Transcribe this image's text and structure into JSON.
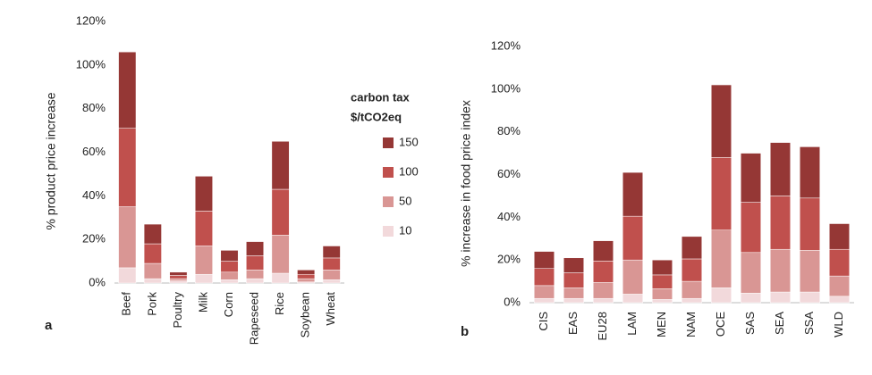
{
  "chart_data": [
    {
      "type": "bar",
      "stacked": true,
      "panel_label": "a",
      "y_label": "% product price increase",
      "categories": [
        "Beef",
        "Pork",
        "Poultry",
        "Milk",
        "Corn",
        "Rapeseed",
        "Rice",
        "Soybean",
        "Wheat"
      ],
      "legend_title": [
        "carbon tax",
        "$/tCO2eq"
      ],
      "series": [
        {
          "name": "10",
          "color": "#f2d9db",
          "values": [
            7,
            2,
            1,
            4,
            1.5,
            2,
            4.5,
            0.5,
            1.5
          ]
        },
        {
          "name": "50",
          "color": "#d99694",
          "values": [
            28,
            7,
            1,
            13,
            3.5,
            4,
            17.5,
            1.5,
            4.5
          ]
        },
        {
          "name": "100",
          "color": "#c0504d",
          "values": [
            36,
            9,
            1.5,
            16,
            5,
            6.5,
            21,
            2,
            5.5
          ]
        },
        {
          "name": "150",
          "color": "#953735",
          "values": [
            35,
            9,
            1.5,
            16,
            5,
            6.5,
            22,
            2,
            5.5
          ]
        }
      ],
      "ylim": [
        0,
        120
      ],
      "yticks": [
        {
          "value": 0,
          "label": "0%"
        },
        {
          "value": 20,
          "label": "20%"
        },
        {
          "value": 40,
          "label": "40%"
        },
        {
          "value": 60,
          "label": "60%"
        },
        {
          "value": 80,
          "label": "80%"
        },
        {
          "value": 100,
          "label": "100%"
        },
        {
          "value": 120,
          "label": "120%"
        }
      ]
    },
    {
      "type": "bar",
      "stacked": true,
      "panel_label": "b",
      "y_label": "% increase in food price index",
      "categories": [
        "CIS",
        "EAS",
        "EU28",
        "LAM",
        "MEN",
        "NAM",
        "OCE",
        "SAS",
        "SEA",
        "SSA",
        "WLD"
      ],
      "series": [
        {
          "color": "#f2d9db",
          "values": [
            2,
            2,
            2,
            4,
            1.5,
            2,
            7,
            4.5,
            5,
            5,
            3
          ]
        },
        {
          "color": "#d99694",
          "values": [
            6,
            5,
            7.5,
            16,
            5,
            8,
            27,
            19,
            20,
            19.5,
            9.5
          ]
        },
        {
          "color": "#c0504d",
          "values": [
            8,
            7,
            10,
            20.5,
            6.5,
            10.5,
            34,
            23.5,
            25,
            24.5,
            12.5
          ]
        },
        {
          "color": "#953735",
          "values": [
            8,
            7,
            9.5,
            20.5,
            7,
            10.5,
            34,
            23,
            25,
            24,
            12
          ]
        }
      ],
      "ylim": [
        0,
        120
      ],
      "yticks": [
        {
          "value": 0,
          "label": "0%"
        },
        {
          "value": 20,
          "label": "20%"
        },
        {
          "value": 40,
          "label": "40%"
        },
        {
          "value": 60,
          "label": "60%"
        },
        {
          "value": 80,
          "label": "80%"
        },
        {
          "value": 100,
          "label": "100%"
        },
        {
          "value": 120,
          "label": "120%"
        }
      ]
    }
  ]
}
